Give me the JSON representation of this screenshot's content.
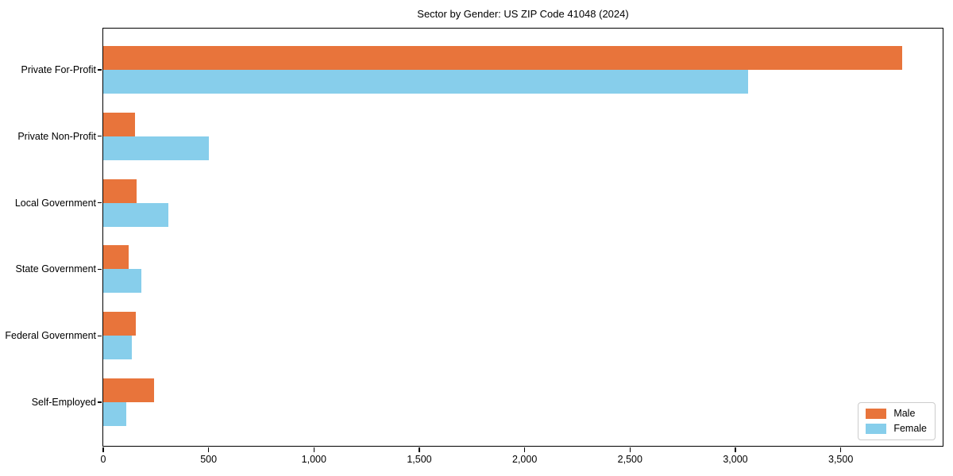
{
  "chart_data": {
    "type": "bar",
    "orientation": "horizontal",
    "title": "Sector by Gender: US ZIP Code 41048 (2024)",
    "categories": [
      "Private For-Profit",
      "Private Non-Profit",
      "Local Government",
      "State Government",
      "Federal Government",
      "Self-Employed"
    ],
    "series": [
      {
        "name": "Male",
        "color": "#E8743B",
        "values": [
          3790,
          150,
          160,
          120,
          155,
          240
        ]
      },
      {
        "name": "Female",
        "color": "#87CEEB",
        "values": [
          3060,
          500,
          310,
          180,
          135,
          110
        ]
      }
    ],
    "xlabel": "",
    "ylabel": "",
    "xlim": [
      0,
      3980
    ],
    "xticks": [
      0,
      500,
      1000,
      1500,
      2000,
      2500,
      3000,
      3500
    ],
    "xtick_labels": [
      "0",
      "500",
      "1,000",
      "1,500",
      "2,000",
      "2,500",
      "3,000",
      "3,500"
    ],
    "grid": false,
    "legend": {
      "position": "lower right",
      "entries": [
        "Male",
        "Female"
      ]
    }
  }
}
